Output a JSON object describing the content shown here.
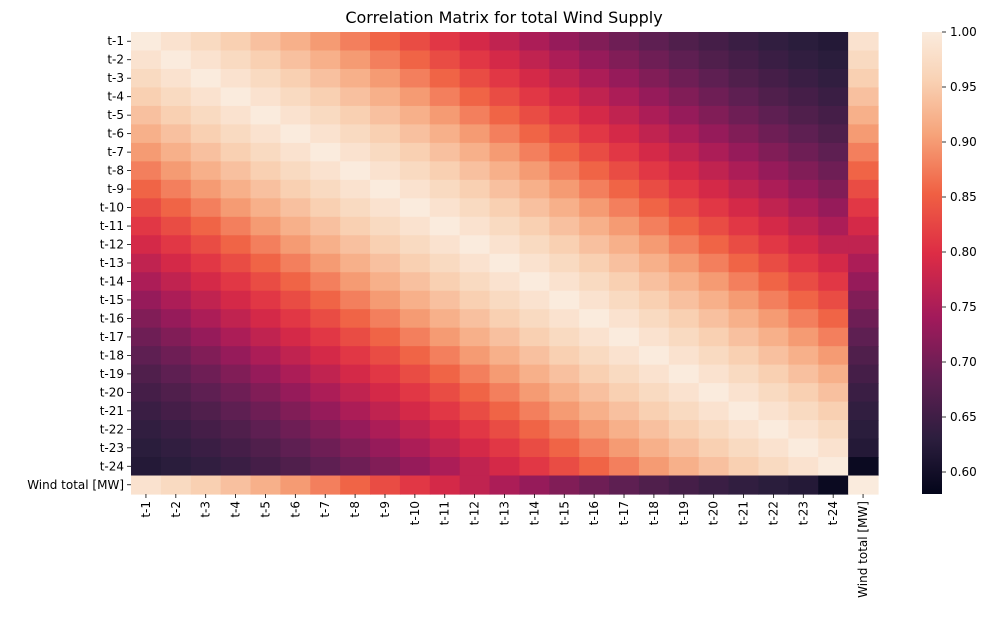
{
  "chart_data": {
    "type": "heatmap",
    "title": "Correlation Matrix for total Wind Supply",
    "xlabel": "",
    "ylabel": "",
    "x_labels": [
      "t-1",
      "t-2",
      "t-3",
      "t-4",
      "t-5",
      "t-6",
      "t-7",
      "t-8",
      "t-9",
      "t-10",
      "t-11",
      "t-12",
      "t-13",
      "t-14",
      "t-15",
      "t-16",
      "t-17",
      "t-18",
      "t-19",
      "t-20",
      "t-21",
      "t-22",
      "t-23",
      "t-24",
      "Wind total [MW]"
    ],
    "y_labels": [
      "t-1",
      "t-2",
      "t-3",
      "t-4",
      "t-5",
      "t-6",
      "t-7",
      "t-8",
      "t-9",
      "t-10",
      "t-11",
      "t-12",
      "t-13",
      "t-14",
      "t-15",
      "t-16",
      "t-17",
      "t-18",
      "t-19",
      "t-20",
      "t-21",
      "t-22",
      "t-23",
      "t-24",
      "Wind total [MW]"
    ],
    "lag_correlation": [
      1.0,
      0.985,
      0.97,
      0.955,
      0.938,
      0.92,
      0.9,
      0.878,
      0.856,
      0.832,
      0.81,
      0.79,
      0.77,
      0.75,
      0.73,
      0.712,
      0.696,
      0.682,
      0.668,
      0.656,
      0.645,
      0.636,
      0.628,
      0.62
    ],
    "target_correlation": [
      0.985,
      0.97,
      0.955,
      0.938,
      0.92,
      0.9,
      0.878,
      0.856,
      0.832,
      0.81,
      0.79,
      0.77,
      0.75,
      0.73,
      0.712,
      0.696,
      0.682,
      0.668,
      0.656,
      0.645,
      0.636,
      0.628,
      0.62,
      0.59
    ],
    "colorbar": {
      "colormap": "rocket",
      "range": [
        0.58,
        1.0
      ],
      "ticks": [
        "1.00",
        "0.95",
        "0.90",
        "0.85",
        "0.80",
        "0.75",
        "0.70",
        "0.65",
        "0.60"
      ]
    }
  }
}
